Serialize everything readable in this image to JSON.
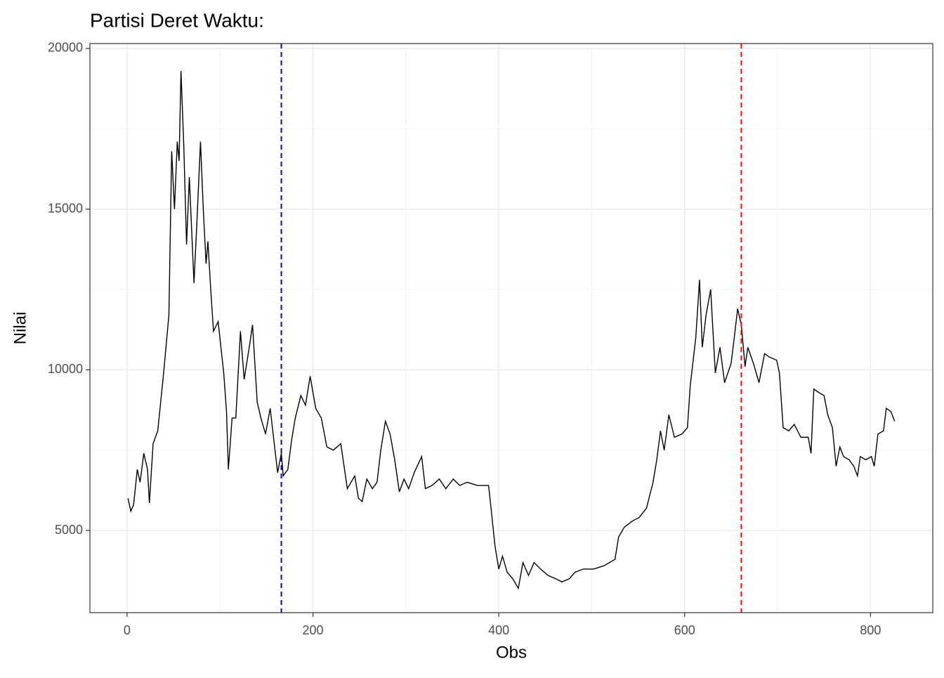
{
  "chart_data": {
    "type": "line",
    "title": "Partisi Deret Waktu:",
    "x_label": "Obs",
    "y_label": "Nilai",
    "x": [
      1,
      4,
      7,
      11,
      14,
      18,
      22,
      24,
      28,
      33,
      39,
      45,
      48,
      51,
      54,
      56,
      58,
      61,
      64,
      67,
      72,
      75,
      79,
      82,
      85,
      87,
      90,
      93,
      98,
      104,
      107,
      109,
      113,
      117,
      122,
      126,
      132,
      135,
      140,
      144,
      149,
      154,
      158,
      162,
      166,
      168,
      173,
      177,
      181,
      187,
      192,
      197,
      203,
      209,
      215,
      222,
      230,
      234,
      237,
      245,
      249,
      253,
      258,
      264,
      269,
      273,
      278,
      283,
      288,
      293,
      298,
      303,
      309,
      317,
      321,
      328,
      336,
      343,
      351,
      358,
      366,
      377,
      389,
      392,
      396,
      400,
      404,
      409,
      415,
      421,
      426,
      432,
      438,
      445,
      453,
      461,
      468,
      476,
      482,
      491,
      502,
      513,
      525,
      529,
      535,
      544,
      551,
      559,
      566,
      570,
      574,
      578,
      583,
      589,
      597,
      603,
      606,
      612,
      616,
      619,
      623,
      628,
      633,
      638,
      643,
      650,
      653,
      657,
      661,
      665,
      668,
      674,
      680,
      686,
      691,
      699,
      702,
      706,
      712,
      718,
      725,
      733,
      736,
      739,
      744,
      750,
      754,
      759,
      763,
      767,
      771,
      777,
      782,
      786,
      789,
      795,
      801,
      804,
      808,
      814,
      817,
      822,
      826
    ],
    "series": [
      {
        "name": "Nilai",
        "color": "#000000",
        "values": [
          6000,
          5600,
          5800,
          6900,
          6500,
          7400,
          6900,
          5850,
          7700,
          8100,
          9800,
          11700,
          16800,
          15000,
          17100,
          16500,
          19300,
          17000,
          13900,
          16000,
          12700,
          14500,
          17100,
          15000,
          13300,
          14000,
          12500,
          11200,
          11500,
          9900,
          8700,
          6900,
          8500,
          8500,
          11200,
          9700,
          10800,
          11400,
          9000,
          8500,
          8000,
          8800,
          7800,
          6800,
          7400,
          6700,
          6900,
          7800,
          8500,
          9200,
          8900,
          9800,
          8800,
          8500,
          7600,
          7500,
          7700,
          6900,
          6300,
          6700,
          6000,
          5900,
          6600,
          6300,
          6500,
          7500,
          8400,
          8000,
          7200,
          6200,
          6600,
          6300,
          6800,
          7300,
          6300,
          6400,
          6600,
          6300,
          6600,
          6400,
          6500,
          6400,
          6400,
          5600,
          4500,
          3800,
          4200,
          3700,
          3500,
          3200,
          4000,
          3600,
          4000,
          3800,
          3600,
          3500,
          3400,
          3500,
          3700,
          3800,
          3800,
          3900,
          4100,
          4800,
          5100,
          5300,
          5400,
          5700,
          6500,
          7200,
          8100,
          7500,
          8600,
          7900,
          8000,
          8200,
          9500,
          11000,
          12800,
          10700,
          11700,
          12500,
          9900,
          10700,
          9600,
          10200,
          10900,
          11900,
          11400,
          10100,
          10700,
          10200,
          9600,
          10500,
          10400,
          10300,
          9900,
          8200,
          8100,
          8300,
          7900,
          7900,
          7400,
          9400,
          9300,
          9200,
          8600,
          8200,
          7000,
          7600,
          7300,
          7200,
          7000,
          6700,
          7300,
          7200,
          7300,
          7000,
          8000,
          8100,
          8800,
          8700,
          8400
        ]
      }
    ],
    "vlines": [
      {
        "x": 166,
        "color": "#0000cd"
      },
      {
        "x": 661,
        "color": "#ff0000"
      }
    ],
    "xlim": [
      -40,
      867
    ],
    "ylim": [
      2442,
      20153
    ],
    "xticks": [
      0,
      200,
      400,
      600,
      800
    ],
    "yticks": [
      5000,
      10000,
      15000,
      20000
    ],
    "grid": true
  }
}
